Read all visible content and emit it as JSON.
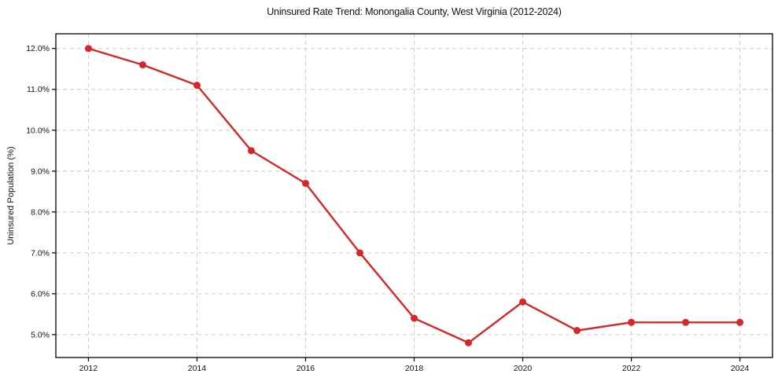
{
  "figure": {
    "background": "#ffffff"
  },
  "chart_data": {
    "type": "line",
    "title": "Uninsured Rate Trend: Monongalia County, West Virginia (2012-2024)",
    "xlabel": "",
    "ylabel": "Uninsured Population (%)",
    "x": [
      2012,
      2013,
      2014,
      2015,
      2016,
      2017,
      2018,
      2019,
      2020,
      2021,
      2022,
      2023,
      2024
    ],
    "values": [
      12.0,
      11.6,
      11.1,
      9.5,
      8.7,
      7.0,
      5.4,
      4.8,
      5.8,
      5.1,
      5.3,
      5.3,
      5.3
    ],
    "xticks": [
      2012,
      2014,
      2016,
      2018,
      2020,
      2022,
      2024
    ],
    "yticks": [
      5.0,
      6.0,
      7.0,
      8.0,
      9.0,
      10.0,
      11.0,
      12.0
    ],
    "ytick_suffix": "%",
    "ytick_decimals": 1,
    "xlim": [
      2011.4,
      2024.6
    ],
    "ylim": [
      4.44,
      12.36
    ],
    "grid": true,
    "grid_style": "dashed",
    "grid_color": "#cccccc",
    "line_color": "#d62728",
    "marker": "circle",
    "marker_radius": 4.5,
    "line_width": 2.4,
    "frame_color": "#000000",
    "text_color": "#111111",
    "legend_position": "none"
  }
}
